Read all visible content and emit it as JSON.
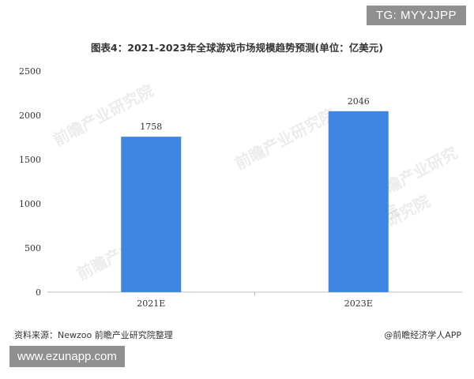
{
  "tag_text": "TG: MYYJJPP",
  "site_text": "www.ezunapp.com",
  "source_text": "资料来源：Newzoo 前瞻产业研究院整理",
  "brand_text": "@前瞻经济学人APP",
  "watermark_text": "前瞻产业研究院",
  "colors": {
    "bar": "#3f86e3",
    "axis": "#bfbfbf",
    "text": "#333333"
  },
  "chart_data": {
    "type": "bar",
    "title": "图表4：2021-2023年全球游戏市场规模趋势预测(单位：亿美元)",
    "xlabel": "",
    "ylabel": "",
    "categories": [
      "2021E",
      "2023E"
    ],
    "values": [
      1758,
      2046
    ],
    "value_labels": [
      "1758",
      "2046"
    ],
    "y_ticks": [
      "0",
      "500",
      "1000",
      "1500",
      "2000",
      "2500"
    ],
    "ylim": [
      0,
      2500
    ],
    "grid": false,
    "legend": "none"
  }
}
